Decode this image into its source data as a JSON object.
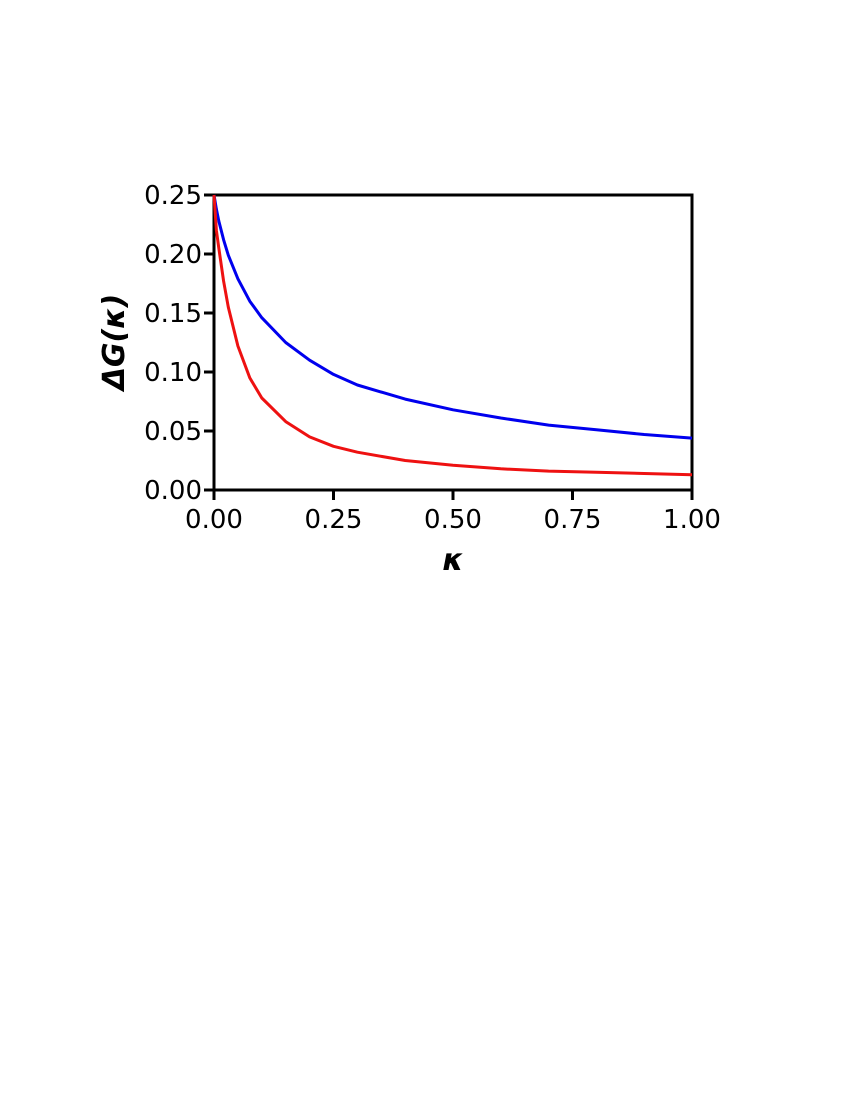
{
  "chart_data": {
    "type": "line",
    "xlabel": "κ",
    "ylabel": "ΔG(κ)",
    "xlim": [
      0,
      1
    ],
    "ylim": [
      0,
      0.25
    ],
    "xticks": [
      "0.00",
      "0.25",
      "0.50",
      "0.75",
      "1.00"
    ],
    "yticks": [
      "0.00",
      "0.05",
      "0.10",
      "0.15",
      "0.20",
      "0.25"
    ],
    "grid": false,
    "legend": "none",
    "series": [
      {
        "color": "#0000ee",
        "x": [
          0,
          0.005,
          0.01,
          0.02,
          0.03,
          0.05,
          0.075,
          0.1,
          0.15,
          0.2,
          0.25,
          0.3,
          0.4,
          0.5,
          0.6,
          0.7,
          0.8,
          0.9,
          1.0
        ],
        "y": [
          0.25,
          0.238,
          0.228,
          0.212,
          0.199,
          0.179,
          0.16,
          0.146,
          0.125,
          0.11,
          0.098,
          0.089,
          0.077,
          0.068,
          0.061,
          0.055,
          0.051,
          0.047,
          0.044
        ]
      },
      {
        "color": "#ee1111",
        "x": [
          0,
          0.005,
          0.01,
          0.02,
          0.03,
          0.05,
          0.075,
          0.1,
          0.15,
          0.2,
          0.25,
          0.3,
          0.4,
          0.5,
          0.6,
          0.7,
          0.8,
          0.9,
          1.0
        ],
        "y": [
          0.25,
          0.22,
          0.205,
          0.177,
          0.155,
          0.122,
          0.095,
          0.078,
          0.058,
          0.045,
          0.037,
          0.032,
          0.025,
          0.021,
          0.018,
          0.016,
          0.015,
          0.014,
          0.013
        ]
      }
    ]
  }
}
